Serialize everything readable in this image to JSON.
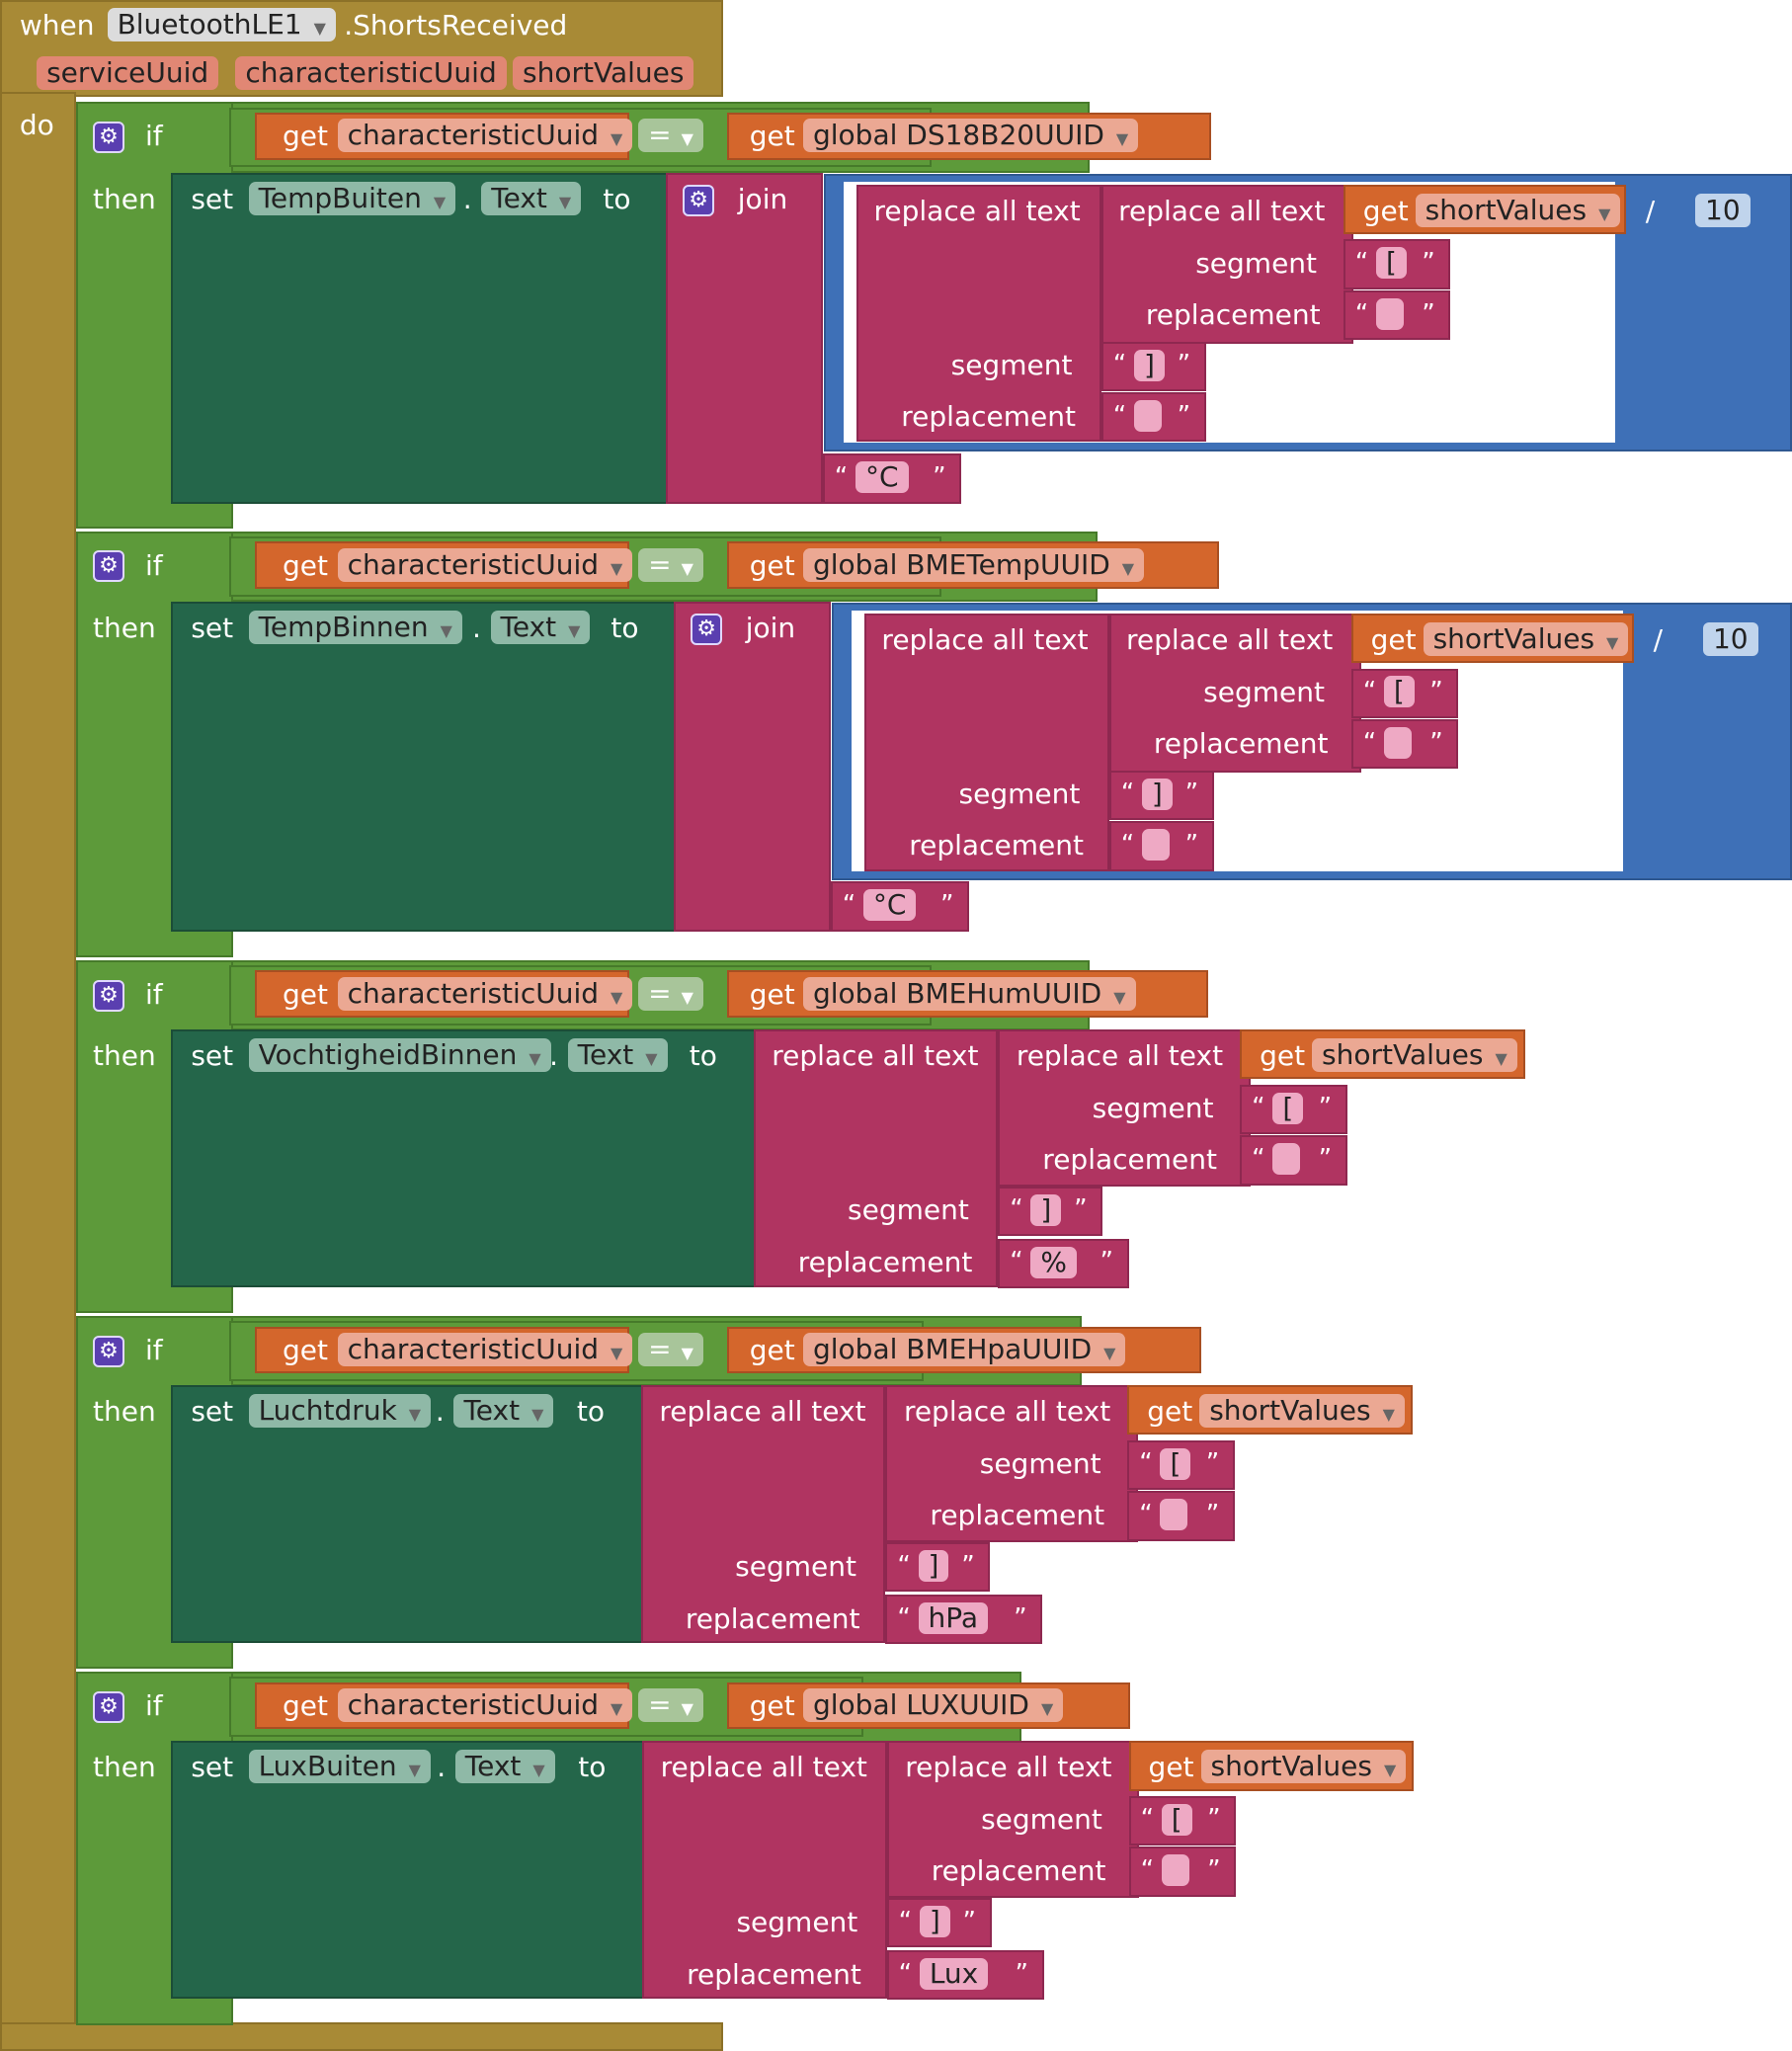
{
  "event": {
    "when_label": "when",
    "component": "BluetoothLE1",
    "event_name": ".ShortsReceived",
    "params": [
      "serviceUuid",
      "characteristicUuid",
      "shortValues"
    ],
    "do_label": "do"
  },
  "labels": {
    "if": "if",
    "then": "then",
    "set": "set",
    "to": "to",
    "dot": ".",
    "get": "get",
    "join": "join",
    "replace_all_text": "replace all text",
    "segment": "segment",
    "replacement": "replacement",
    "eq": "=",
    "divide": "/",
    "open_quote": "“",
    "close_quote": "”"
  },
  "branches": [
    {
      "compare_var": "characteristicUuid",
      "global_var": "global DS18B20UUID",
      "component": "TempBuiten",
      "property": "Text",
      "value_source": "shortValues",
      "inner_segment": "[",
      "inner_replacement": "",
      "outer_segment": "]",
      "outer_replacement": "",
      "divisor": "10",
      "suffix": "°C"
    },
    {
      "compare_var": "characteristicUuid",
      "global_var": "global BMETempUUID",
      "component": "TempBinnen",
      "property": "Text",
      "value_source": "shortValues",
      "inner_segment": "[",
      "inner_replacement": "",
      "outer_segment": "]",
      "outer_replacement": "",
      "divisor": "10",
      "suffix": "°C"
    },
    {
      "compare_var": "characteristicUuid",
      "global_var": "global BMEHumUUID",
      "component": "VochtigheidBinnen",
      "property": "Text",
      "value_source": "shortValues",
      "inner_segment": "[",
      "inner_replacement": "",
      "outer_segment": "]",
      "outer_replacement": "%"
    },
    {
      "compare_var": "characteristicUuid",
      "global_var": "global BMEHpaUUID",
      "component": "Luchtdruk",
      "property": "Text",
      "value_source": "shortValues",
      "inner_segment": "[",
      "inner_replacement": "",
      "outer_segment": "]",
      "outer_replacement": "hPa"
    },
    {
      "compare_var": "characteristicUuid",
      "global_var": "global LUXUUID",
      "component": "LuxBuiten",
      "property": "Text",
      "value_source": "shortValues",
      "inner_segment": "[",
      "inner_replacement": "",
      "outer_segment": "]",
      "outer_replacement": "Lux"
    }
  ],
  "colors": {
    "event": "#a88a36",
    "control": "#5d9a3a",
    "setter": "#24664a",
    "text": "#b03461",
    "math": "#3e70b7",
    "variable_get": "#d4662c"
  }
}
